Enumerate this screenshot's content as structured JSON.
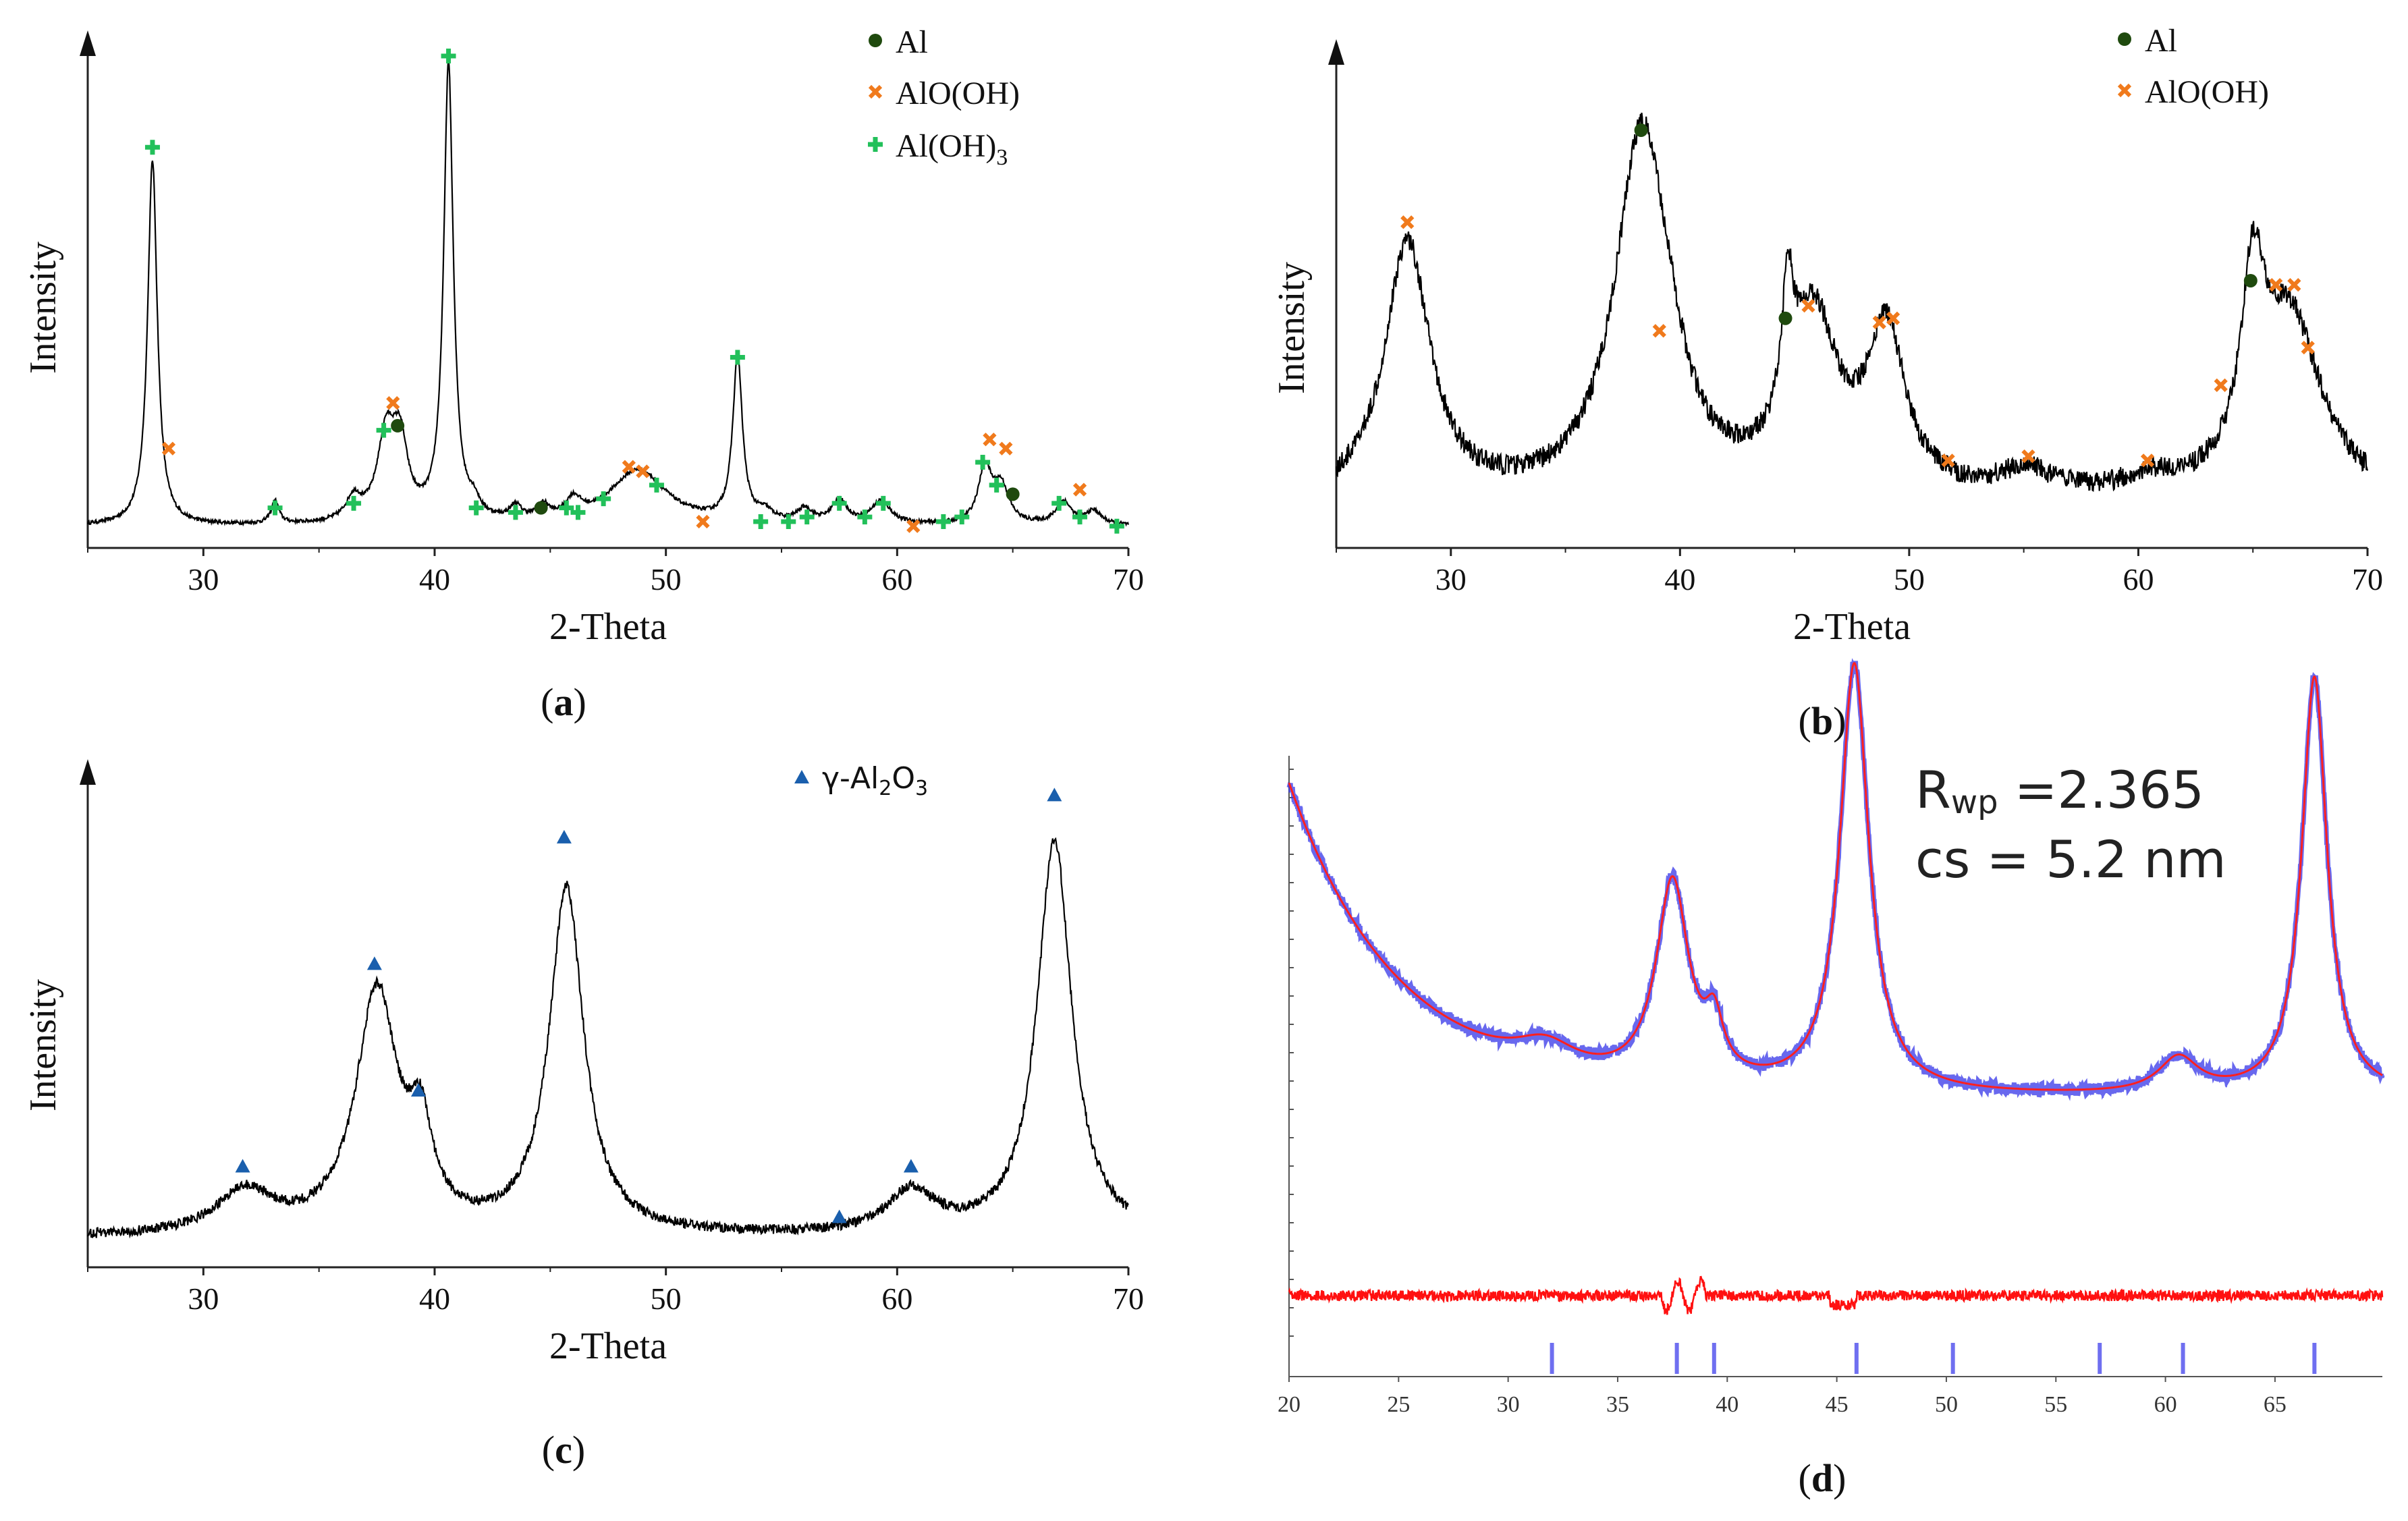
{
  "chart_data": [
    {
      "panel": "a",
      "type": "line",
      "xlabel": "2-Theta",
      "ylabel": "Intensity",
      "panel_label": "(a)",
      "xlim": [
        25,
        70
      ],
      "xticks": [
        30,
        40,
        50,
        60,
        70
      ],
      "legend": [
        {
          "label": "Al",
          "marker": "circle",
          "color": "#1f4a0e"
        },
        {
          "label": "AlO(OH)",
          "marker": "cross",
          "color": "#f07a1c"
        },
        {
          "label": "Al(OH)3",
          "marker": "plus",
          "color": "#22c05a"
        }
      ],
      "baseline": 0.03,
      "peaks": [
        {
          "x": 27.8,
          "h": 0.8,
          "w": 0.25
        },
        {
          "x": 33.1,
          "h": 0.05,
          "w": 0.2
        },
        {
          "x": 36.5,
          "h": 0.05,
          "w": 0.4
        },
        {
          "x": 37.9,
          "h": 0.18,
          "w": 0.45
        },
        {
          "x": 38.5,
          "h": 0.16,
          "w": 0.4
        },
        {
          "x": 40.6,
          "h": 1.0,
          "w": 0.25
        },
        {
          "x": 41.7,
          "h": 0.03,
          "w": 0.3
        },
        {
          "x": 43.5,
          "h": 0.03,
          "w": 0.3
        },
        {
          "x": 44.7,
          "h": 0.03,
          "w": 0.3
        },
        {
          "x": 46.0,
          "h": 0.04,
          "w": 0.4
        },
        {
          "x": 48.8,
          "h": 0.12,
          "w": 1.5
        },
        {
          "x": 53.1,
          "h": 0.36,
          "w": 0.25
        },
        {
          "x": 54.3,
          "h": 0.02,
          "w": 0.4
        },
        {
          "x": 56.0,
          "h": 0.03,
          "w": 0.4
        },
        {
          "x": 57.5,
          "h": 0.05,
          "w": 0.4
        },
        {
          "x": 59.3,
          "h": 0.05,
          "w": 0.5
        },
        {
          "x": 63.8,
          "h": 0.12,
          "w": 0.35
        },
        {
          "x": 64.5,
          "h": 0.08,
          "w": 0.4
        },
        {
          "x": 67.2,
          "h": 0.05,
          "w": 0.4
        },
        {
          "x": 68.5,
          "h": 0.03,
          "w": 0.4
        }
      ],
      "noise": 0.004,
      "markers": [
        {
          "x": 27.8,
          "y": 0.86,
          "type": "plus"
        },
        {
          "x": 28.5,
          "y": 0.2,
          "type": "cross"
        },
        {
          "x": 33.1,
          "y": 0.07,
          "type": "plus"
        },
        {
          "x": 36.5,
          "y": 0.08,
          "type": "plus"
        },
        {
          "x": 37.8,
          "y": 0.24,
          "type": "plus"
        },
        {
          "x": 38.2,
          "y": 0.3,
          "type": "cross"
        },
        {
          "x": 38.4,
          "y": 0.25,
          "type": "circle"
        },
        {
          "x": 40.6,
          "y": 1.06,
          "type": "plus"
        },
        {
          "x": 41.8,
          "y": 0.07,
          "type": "plus"
        },
        {
          "x": 43.5,
          "y": 0.06,
          "type": "plus"
        },
        {
          "x": 44.6,
          "y": 0.07,
          "type": "circle"
        },
        {
          "x": 45.7,
          "y": 0.07,
          "type": "plus"
        },
        {
          "x": 46.2,
          "y": 0.06,
          "type": "plus"
        },
        {
          "x": 47.3,
          "y": 0.09,
          "type": "plus"
        },
        {
          "x": 48.4,
          "y": 0.16,
          "type": "cross"
        },
        {
          "x": 49.0,
          "y": 0.15,
          "type": "cross"
        },
        {
          "x": 49.6,
          "y": 0.12,
          "type": "plus"
        },
        {
          "x": 51.6,
          "y": 0.04,
          "type": "cross"
        },
        {
          "x": 53.1,
          "y": 0.4,
          "type": "plus"
        },
        {
          "x": 54.1,
          "y": 0.04,
          "type": "plus"
        },
        {
          "x": 55.3,
          "y": 0.04,
          "type": "plus"
        },
        {
          "x": 56.1,
          "y": 0.05,
          "type": "plus"
        },
        {
          "x": 57.5,
          "y": 0.08,
          "type": "plus"
        },
        {
          "x": 58.6,
          "y": 0.05,
          "type": "plus"
        },
        {
          "x": 59.4,
          "y": 0.08,
          "type": "plus"
        },
        {
          "x": 60.7,
          "y": 0.03,
          "type": "cross"
        },
        {
          "x": 62.0,
          "y": 0.04,
          "type": "plus"
        },
        {
          "x": 62.8,
          "y": 0.05,
          "type": "plus"
        },
        {
          "x": 63.7,
          "y": 0.17,
          "type": "plus"
        },
        {
          "x": 64.0,
          "y": 0.22,
          "type": "cross"
        },
        {
          "x": 64.3,
          "y": 0.12,
          "type": "plus"
        },
        {
          "x": 64.7,
          "y": 0.2,
          "type": "cross"
        },
        {
          "x": 65.0,
          "y": 0.1,
          "type": "circle"
        },
        {
          "x": 67.0,
          "y": 0.08,
          "type": "plus"
        },
        {
          "x": 67.9,
          "y": 0.11,
          "type": "cross"
        },
        {
          "x": 67.9,
          "y": 0.05,
          "type": "plus"
        },
        {
          "x": 69.5,
          "y": 0.03,
          "type": "plus"
        }
      ]
    },
    {
      "panel": "b",
      "type": "line",
      "xlabel": "2-Theta",
      "ylabel": "Intensity",
      "panel_label": "(b)",
      "xlim": [
        25,
        70
      ],
      "xticks": [
        30,
        40,
        50,
        60,
        70
      ],
      "legend": [
        {
          "label": "Al",
          "marker": "circle",
          "color": "#1f4a0e"
        },
        {
          "label": "AlO(OH)",
          "marker": "cross",
          "color": "#f07a1c"
        }
      ],
      "baseline": 0.08,
      "peaks": [
        {
          "x": 28.1,
          "h": 0.62,
          "w": 1.2
        },
        {
          "x": 38.3,
          "h": 0.85,
          "w": 1.4
        },
        {
          "x": 39.5,
          "h": 0.1,
          "w": 1.0
        },
        {
          "x": 44.7,
          "h": 0.3,
          "w": 0.3
        },
        {
          "x": 45.8,
          "h": 0.42,
          "w": 1.3
        },
        {
          "x": 49.0,
          "h": 0.38,
          "w": 1.0
        },
        {
          "x": 55.1,
          "h": 0.06,
          "w": 1.5
        },
        {
          "x": 60.5,
          "h": 0.04,
          "w": 1.5
        },
        {
          "x": 65.0,
          "h": 0.42,
          "w": 0.6
        },
        {
          "x": 66.6,
          "h": 0.44,
          "w": 1.7
        }
      ],
      "noise": 0.025,
      "markers": [
        {
          "x": 28.1,
          "y": 0.76,
          "type": "cross"
        },
        {
          "x": 38.3,
          "y": 0.98,
          "type": "circle"
        },
        {
          "x": 39.1,
          "y": 0.5,
          "type": "cross"
        },
        {
          "x": 44.6,
          "y": 0.53,
          "type": "circle"
        },
        {
          "x": 45.6,
          "y": 0.56,
          "type": "cross"
        },
        {
          "x": 48.7,
          "y": 0.52,
          "type": "cross"
        },
        {
          "x": 49.3,
          "y": 0.53,
          "type": "cross"
        },
        {
          "x": 51.7,
          "y": 0.19,
          "type": "cross"
        },
        {
          "x": 55.2,
          "y": 0.2,
          "type": "cross"
        },
        {
          "x": 60.4,
          "y": 0.19,
          "type": "cross"
        },
        {
          "x": 63.6,
          "y": 0.37,
          "type": "cross"
        },
        {
          "x": 64.9,
          "y": 0.62,
          "type": "circle"
        },
        {
          "x": 66.0,
          "y": 0.61,
          "type": "cross"
        },
        {
          "x": 66.8,
          "y": 0.61,
          "type": "cross"
        },
        {
          "x": 67.4,
          "y": 0.46,
          "type": "cross"
        }
      ]
    },
    {
      "panel": "c",
      "type": "line",
      "xlabel": "2-Theta",
      "ylabel": "Intensity",
      "panel_label": "(c)",
      "xlim": [
        25,
        70
      ],
      "xticks": [
        30,
        40,
        50,
        60,
        70
      ],
      "legend": [
        {
          "label": "γ-Al2O3",
          "marker": "triangle",
          "color": "#1a5fad"
        }
      ],
      "baseline": 0.05,
      "peaks": [
        {
          "x": 31.8,
          "h": 0.1,
          "w": 1.5
        },
        {
          "x": 37.5,
          "h": 0.57,
          "w": 1.1
        },
        {
          "x": 39.4,
          "h": 0.2,
          "w": 0.6
        },
        {
          "x": 45.7,
          "h": 0.82,
          "w": 0.9
        },
        {
          "x": 60.6,
          "h": 0.1,
          "w": 1.3
        },
        {
          "x": 66.8,
          "h": 0.94,
          "w": 0.9
        }
      ],
      "noise": 0.012,
      "markers": [
        {
          "x": 31.7,
          "y": 0.22,
          "type": "triangle"
        },
        {
          "x": 37.4,
          "y": 0.7,
          "type": "triangle"
        },
        {
          "x": 39.3,
          "y": 0.4,
          "type": "triangle"
        },
        {
          "x": 45.6,
          "y": 1.0,
          "type": "triangle"
        },
        {
          "x": 57.5,
          "y": 0.1,
          "type": "triangle"
        },
        {
          "x": 60.6,
          "y": 0.22,
          "type": "triangle"
        },
        {
          "x": 66.8,
          "y": 1.1,
          "type": "triangle"
        }
      ]
    },
    {
      "panel": "d",
      "type": "line",
      "panel_label": "(d)",
      "xlim": [
        20,
        70
      ],
      "xticks": [
        20,
        25,
        30,
        35,
        40,
        45,
        50,
        55,
        60,
        65
      ],
      "annotation_rwp_prefix": "R",
      "annotation_rwp_sub": "wp",
      "annotation_rwp_value": " =2.365",
      "annotation_cs": "cs = 5.2 nm",
      "series": [
        {
          "name": "observed",
          "color": "#3535e8"
        },
        {
          "name": "calculated",
          "color": "#ff2020"
        },
        {
          "name": "difference",
          "color": "#ff1010"
        }
      ],
      "reflection_ticks": [
        32.0,
        37.7,
        39.4,
        45.9,
        50.3,
        57.0,
        60.8,
        66.8
      ],
      "decay_amp": 0.62,
      "decay_tau": 5.0,
      "baseline": 0.1,
      "peaks": [
        {
          "x": 31.7,
          "h": 0.05,
          "w": 1.7
        },
        {
          "x": 37.5,
          "h": 0.4,
          "w": 0.9
        },
        {
          "x": 39.4,
          "h": 0.1,
          "w": 0.5
        },
        {
          "x": 45.8,
          "h": 0.85,
          "w": 0.8
        },
        {
          "x": 60.6,
          "h": 0.07,
          "w": 1.1
        },
        {
          "x": 66.8,
          "h": 0.83,
          "w": 0.7
        }
      ],
      "noise": 0.012
    }
  ]
}
